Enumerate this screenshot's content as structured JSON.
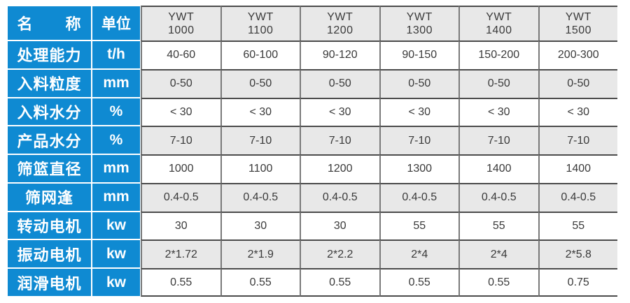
{
  "table": {
    "corner": {
      "name_label": "名　　称",
      "unit_label": "单位"
    },
    "models": [
      {
        "series": "YWT",
        "size": "1000"
      },
      {
        "series": "YWT",
        "size": "1100"
      },
      {
        "series": "YWT",
        "size": "1200"
      },
      {
        "series": "YWT",
        "size": "1300"
      },
      {
        "series": "YWT",
        "size": "1400"
      },
      {
        "series": "YWT",
        "size": "1500"
      }
    ],
    "rows": [
      {
        "label": "处理能力",
        "unit": "t/h",
        "values": [
          "40-60",
          "60-100",
          "90-120",
          "90-150",
          "150-200",
          "200-300"
        ]
      },
      {
        "label": "入料粒度",
        "unit": "mm",
        "values": [
          "0-50",
          "0-50",
          "0-50",
          "0-50",
          "0-50",
          "0-50"
        ]
      },
      {
        "label": "入料水分",
        "unit": "%",
        "values": [
          "< 30",
          "< 30",
          "< 30",
          "< 30",
          "< 30",
          "< 30"
        ]
      },
      {
        "label": "产品水分",
        "unit": "%",
        "values": [
          "7-10",
          "7-10",
          "7-10",
          "7-10",
          "7-10",
          "7-10"
        ]
      },
      {
        "label": "筛篮直径",
        "unit": "mm",
        "values": [
          "1000",
          "1100",
          "1200",
          "1300",
          "1400",
          "1400"
        ]
      },
      {
        "label": "筛网逢",
        "unit": "mm",
        "values": [
          "0.4-0.5",
          "0.4-0.5",
          "0.4-0.5",
          "0.4-0.5",
          "0.4-0.5",
          "0.4-0.5"
        ]
      },
      {
        "label": "转动电机",
        "unit": "kw",
        "values": [
          "30",
          "30",
          "30",
          "55",
          "55",
          "55"
        ]
      },
      {
        "label": "振动电机",
        "unit": "kw",
        "values": [
          "2*1.72",
          "2*1.9",
          "2*2.2",
          "2*4",
          "2*4",
          "2*5.8"
        ]
      },
      {
        "label": "润滑电机",
        "unit": "kw",
        "values": [
          "0.55",
          "0.55",
          "0.55",
          "0.55",
          "0.55",
          "0.75"
        ]
      }
    ],
    "colors": {
      "header_blue": "#0f8ad2",
      "alt_row_bg": "#e8e8e8",
      "border_dark": "#4b4b4b",
      "border_mid": "#7a7a7a"
    }
  }
}
